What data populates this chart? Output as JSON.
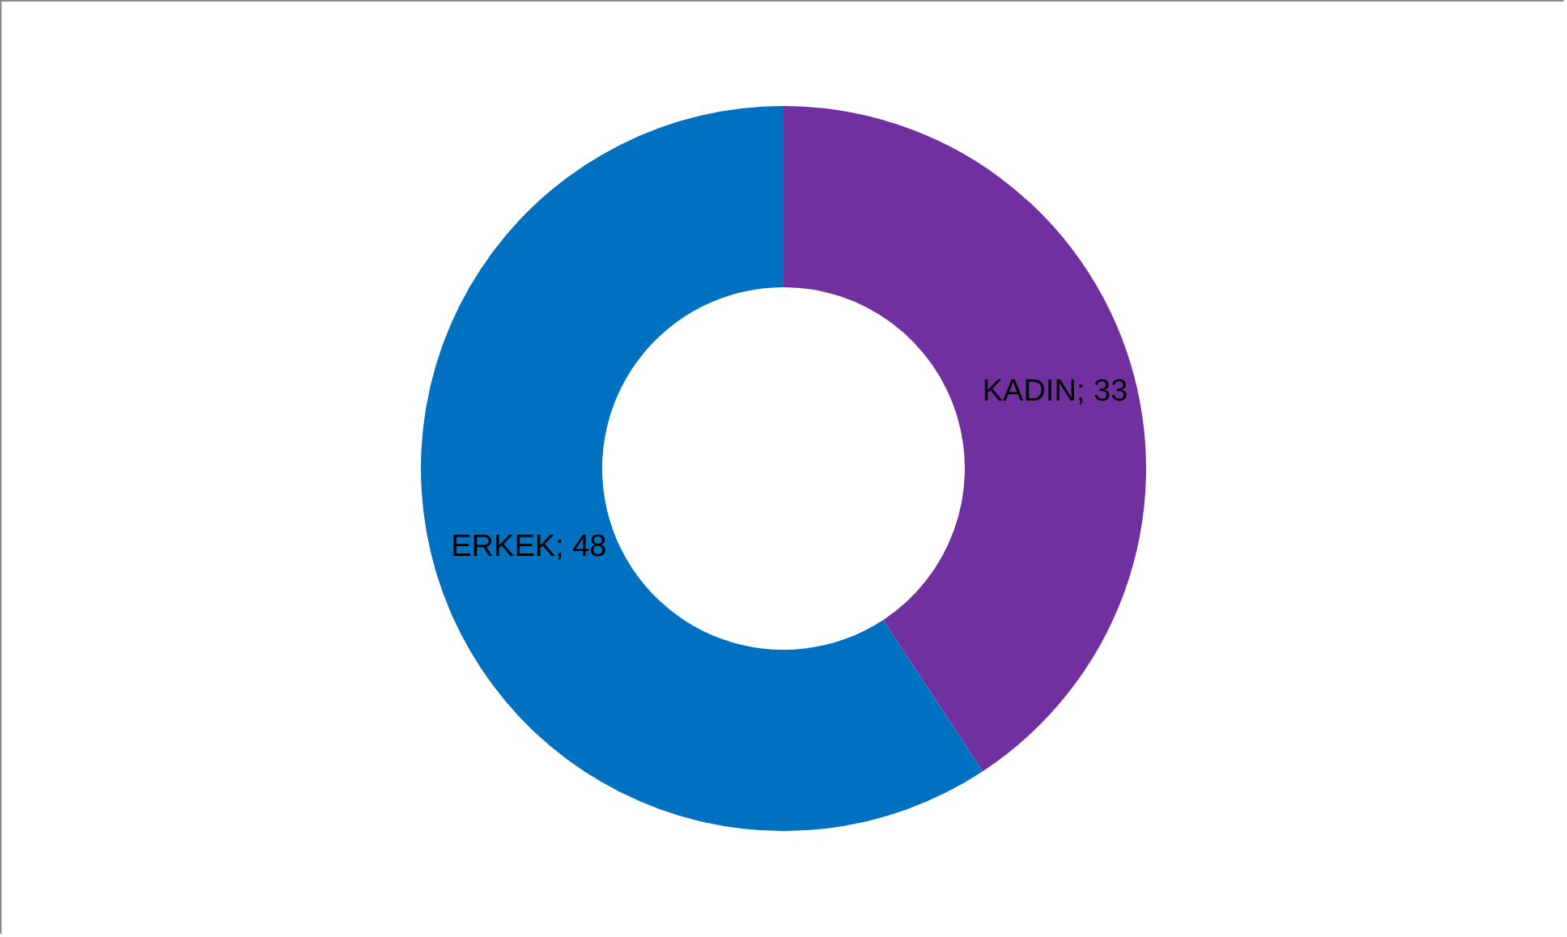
{
  "chart_data": {
    "type": "donut",
    "categories": [
      "KADIN",
      "ERKEK"
    ],
    "values": [
      33,
      48
    ],
    "colors": [
      "#7030a0",
      "#0070c0"
    ],
    "value_labels": [
      "; 33",
      "; 48"
    ]
  }
}
